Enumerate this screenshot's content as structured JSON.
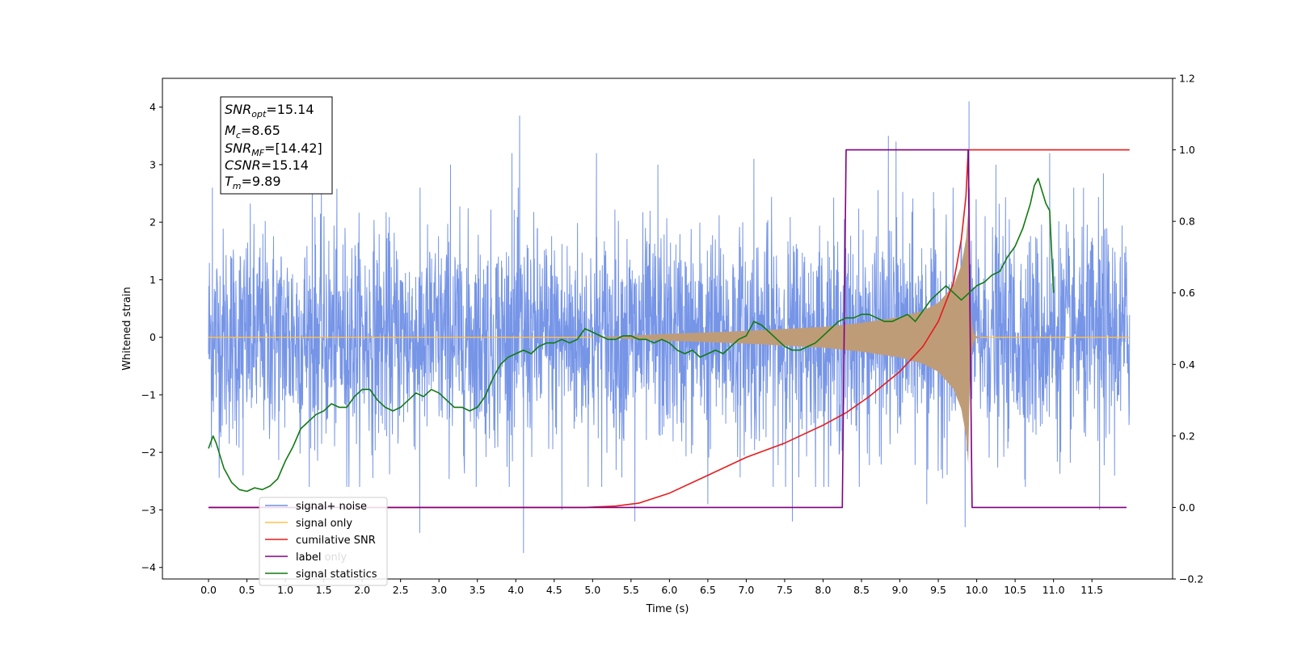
{
  "chart_data": {
    "type": "line",
    "xlabel": "Time (s)",
    "ylabel": "Whitened strain",
    "xlim": [
      -0.6,
      12.55
    ],
    "ylim": [
      -4.2,
      4.5
    ],
    "y2lim": [
      -0.2,
      1.2
    ],
    "x_ticks": [
      "0.0",
      "0.5",
      "1.0",
      "1.5",
      "2.0",
      "2.5",
      "3.0",
      "3.5",
      "4.0",
      "4.5",
      "5.0",
      "5.5",
      "6.0",
      "6.5",
      "7.0",
      "7.5",
      "8.0",
      "8.5",
      "9.0",
      "9.5",
      "10.0",
      "10.5",
      "11.0",
      "11.5"
    ],
    "y_ticks": [
      "−4",
      "−3",
      "−2",
      "−1",
      "0",
      "1",
      "2",
      "3",
      "4"
    ],
    "y2_ticks": [
      "−0.2",
      "0.0",
      "0.2",
      "0.4",
      "0.6",
      "0.8",
      "1.0",
      "1.2"
    ],
    "legend": {
      "placement": "lower-left",
      "entries": [
        {
          "label": "signal+ noise",
          "color": "#6f8fe6"
        },
        {
          "label": "signal only",
          "color": "#ffc04d"
        },
        {
          "label": "cumilative SNR",
          "color": "#e81a1a"
        },
        {
          "label": "label",
          "color": "#800080"
        },
        {
          "label": "signal statistics",
          "color": "#117a11"
        }
      ],
      "hidden_text": "label only"
    },
    "annotation": {
      "lines": [
        {
          "main": "SNR",
          "sub": "opt",
          "rest": "=15.14"
        },
        {
          "main": "M",
          "sub": "c",
          "rest": "=8.65"
        },
        {
          "main": "SNR",
          "sub": "MF",
          "rest": "=[14.42]"
        },
        {
          "main": "CSNR",
          "sub": "",
          "rest": "=15.14"
        },
        {
          "main": "T",
          "sub": "m",
          "rest": "=9.89"
        }
      ]
    },
    "series": [
      {
        "name": "signal+ noise",
        "axis": "left",
        "color": "#6f8fe6",
        "kind": "noise-band",
        "x_range": [
          0.0,
          11.99
        ],
        "band_amplitude": 1.5,
        "spikes": [
          [
            0.05,
            2.6
          ],
          [
            0.45,
            -2.4
          ],
          [
            1.35,
            3.1
          ],
          [
            1.8,
            -2.6
          ],
          [
            2.75,
            -3.4
          ],
          [
            3.15,
            3.0
          ],
          [
            3.95,
            3.2
          ],
          [
            4.05,
            3.85
          ],
          [
            4.1,
            -3.75
          ],
          [
            4.6,
            -3.0
          ],
          [
            5.05,
            3.2
          ],
          [
            5.55,
            -3.2
          ],
          [
            5.85,
            3.0
          ],
          [
            6.5,
            -2.9
          ],
          [
            7.1,
            3.1
          ],
          [
            7.6,
            -3.2
          ],
          [
            8.85,
            3.5
          ],
          [
            8.95,
            3.4
          ],
          [
            9.35,
            -2.9
          ],
          [
            9.85,
            -3.3
          ],
          [
            9.9,
            4.1
          ],
          [
            10.25,
            3.0
          ],
          [
            10.95,
            3.2
          ],
          [
            11.6,
            -3.0
          ],
          [
            11.65,
            2.85
          ]
        ]
      },
      {
        "name": "signal only",
        "axis": "left",
        "color": "#ffc04d",
        "kind": "chirp-envelope",
        "x_range": [
          0.0,
          11.99
        ],
        "onset": 5.0,
        "merger": 9.89,
        "peak_amplitude": 2.2,
        "envelope": [
          [
            5.0,
            0.0
          ],
          [
            6.0,
            0.06
          ],
          [
            7.0,
            0.11
          ],
          [
            8.0,
            0.18
          ],
          [
            8.5,
            0.25
          ],
          [
            9.0,
            0.35
          ],
          [
            9.3,
            0.46
          ],
          [
            9.5,
            0.6
          ],
          [
            9.7,
            0.9
          ],
          [
            9.8,
            1.25
          ],
          [
            9.86,
            1.7
          ],
          [
            9.89,
            2.2
          ]
        ]
      },
      {
        "name": "cumilative SNR",
        "axis": "right",
        "color": "#e81a1a",
        "points": [
          [
            0.0,
            0.0
          ],
          [
            4.9,
            0.0
          ],
          [
            5.3,
            0.004
          ],
          [
            5.6,
            0.012
          ],
          [
            6.0,
            0.04
          ],
          [
            6.5,
            0.09
          ],
          [
            7.0,
            0.14
          ],
          [
            7.5,
            0.18
          ],
          [
            8.0,
            0.23
          ],
          [
            8.3,
            0.265
          ],
          [
            8.6,
            0.31
          ],
          [
            9.0,
            0.38
          ],
          [
            9.3,
            0.45
          ],
          [
            9.5,
            0.52
          ],
          [
            9.7,
            0.63
          ],
          [
            9.8,
            0.75
          ],
          [
            9.86,
            0.87
          ],
          [
            9.89,
            1.0
          ],
          [
            11.99,
            1.0
          ]
        ]
      },
      {
        "name": "label",
        "axis": "right",
        "color": "#800080",
        "points": [
          [
            0.0,
            0.0
          ],
          [
            8.25,
            0.0
          ],
          [
            8.3,
            1.0
          ],
          [
            9.89,
            1.0
          ],
          [
            9.94,
            0.0
          ],
          [
            11.95,
            0.0
          ]
        ]
      },
      {
        "name": "signal statistics",
        "axis": "right",
        "color": "#117a11",
        "points": [
          [
            0.0,
            0.165
          ],
          [
            0.06,
            0.2
          ],
          [
            0.1,
            0.18
          ],
          [
            0.2,
            0.11
          ],
          [
            0.3,
            0.07
          ],
          [
            0.4,
            0.05
          ],
          [
            0.5,
            0.045
          ],
          [
            0.6,
            0.055
          ],
          [
            0.7,
            0.05
          ],
          [
            0.8,
            0.06
          ],
          [
            0.9,
            0.08
          ],
          [
            1.0,
            0.13
          ],
          [
            1.1,
            0.17
          ],
          [
            1.2,
            0.22
          ],
          [
            1.3,
            0.24
          ],
          [
            1.4,
            0.26
          ],
          [
            1.5,
            0.27
          ],
          [
            1.6,
            0.29
          ],
          [
            1.7,
            0.28
          ],
          [
            1.8,
            0.28
          ],
          [
            1.9,
            0.31
          ],
          [
            2.0,
            0.33
          ],
          [
            2.1,
            0.33
          ],
          [
            2.2,
            0.3
          ],
          [
            2.3,
            0.28
          ],
          [
            2.4,
            0.27
          ],
          [
            2.5,
            0.28
          ],
          [
            2.6,
            0.3
          ],
          [
            2.7,
            0.32
          ],
          [
            2.8,
            0.31
          ],
          [
            2.9,
            0.33
          ],
          [
            3.0,
            0.32
          ],
          [
            3.1,
            0.3
          ],
          [
            3.2,
            0.28
          ],
          [
            3.3,
            0.28
          ],
          [
            3.4,
            0.27
          ],
          [
            3.5,
            0.28
          ],
          [
            3.6,
            0.31
          ],
          [
            3.7,
            0.36
          ],
          [
            3.8,
            0.4
          ],
          [
            3.9,
            0.42
          ],
          [
            4.0,
            0.43
          ],
          [
            4.1,
            0.44
          ],
          [
            4.2,
            0.43
          ],
          [
            4.3,
            0.45
          ],
          [
            4.4,
            0.46
          ],
          [
            4.5,
            0.46
          ],
          [
            4.6,
            0.47
          ],
          [
            4.7,
            0.46
          ],
          [
            4.8,
            0.47
          ],
          [
            4.9,
            0.5
          ],
          [
            5.0,
            0.49
          ],
          [
            5.1,
            0.48
          ],
          [
            5.2,
            0.47
          ],
          [
            5.3,
            0.47
          ],
          [
            5.4,
            0.48
          ],
          [
            5.5,
            0.48
          ],
          [
            5.6,
            0.47
          ],
          [
            5.7,
            0.47
          ],
          [
            5.8,
            0.46
          ],
          [
            5.9,
            0.47
          ],
          [
            6.0,
            0.46
          ],
          [
            6.1,
            0.44
          ],
          [
            6.2,
            0.43
          ],
          [
            6.3,
            0.44
          ],
          [
            6.4,
            0.42
          ],
          [
            6.5,
            0.43
          ],
          [
            6.6,
            0.44
          ],
          [
            6.7,
            0.43
          ],
          [
            6.8,
            0.45
          ],
          [
            6.9,
            0.47
          ],
          [
            7.0,
            0.48
          ],
          [
            7.1,
            0.52
          ],
          [
            7.2,
            0.51
          ],
          [
            7.3,
            0.49
          ],
          [
            7.4,
            0.47
          ],
          [
            7.5,
            0.45
          ],
          [
            7.6,
            0.44
          ],
          [
            7.7,
            0.44
          ],
          [
            7.8,
            0.45
          ],
          [
            7.9,
            0.46
          ],
          [
            8.0,
            0.48
          ],
          [
            8.1,
            0.5
          ],
          [
            8.2,
            0.52
          ],
          [
            8.3,
            0.53
          ],
          [
            8.4,
            0.53
          ],
          [
            8.5,
            0.54
          ],
          [
            8.6,
            0.54
          ],
          [
            8.7,
            0.53
          ],
          [
            8.8,
            0.52
          ],
          [
            8.9,
            0.52
          ],
          [
            9.0,
            0.53
          ],
          [
            9.1,
            0.54
          ],
          [
            9.2,
            0.52
          ],
          [
            9.3,
            0.55
          ],
          [
            9.4,
            0.58
          ],
          [
            9.5,
            0.6
          ],
          [
            9.6,
            0.62
          ],
          [
            9.7,
            0.6
          ],
          [
            9.8,
            0.58
          ],
          [
            9.9,
            0.6
          ],
          [
            10.0,
            0.62
          ],
          [
            10.1,
            0.63
          ],
          [
            10.2,
            0.65
          ],
          [
            10.3,
            0.66
          ],
          [
            10.4,
            0.7
          ],
          [
            10.5,
            0.73
          ],
          [
            10.6,
            0.78
          ],
          [
            10.7,
            0.85
          ],
          [
            10.75,
            0.9
          ],
          [
            10.8,
            0.92
          ],
          [
            10.9,
            0.85
          ],
          [
            10.95,
            0.83
          ],
          [
            11.0,
            0.6
          ]
        ]
      }
    ]
  }
}
